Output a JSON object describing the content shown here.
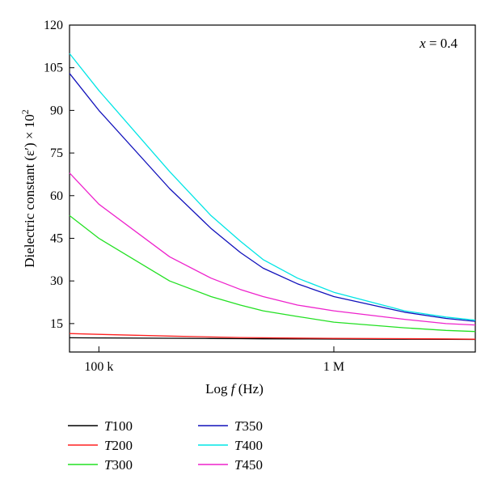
{
  "chart_data": {
    "type": "line",
    "annotation": {
      "prefix": "x",
      "suffix": " = 0.4"
    },
    "xlabel": {
      "pre": "Log ",
      "var": "f",
      "post": " (Hz)"
    },
    "ylabel": {
      "main": "Dielectric constant (ε′) × 10",
      "exp": "2"
    },
    "x_scale": "log",
    "xlim": [
      75000,
      4000000
    ],
    "ylim": [
      5,
      120
    ],
    "x_ticks": [
      {
        "value": 100000,
        "label": "100 k"
      },
      {
        "value": 1000000,
        "label": "1 M"
      }
    ],
    "y_ticks": [
      15,
      30,
      45,
      60,
      75,
      90,
      105,
      120
    ],
    "x": [
      75000,
      100000,
      200000,
      300000,
      400000,
      500000,
      700000,
      1000000,
      2000000,
      3000000,
      4000000
    ],
    "series": [
      {
        "name": "T100",
        "prefix": "T",
        "num": "100",
        "color": "#000000",
        "values": [
          10.0,
          9.95,
          9.85,
          9.75,
          9.7,
          9.65,
          9.6,
          9.55,
          9.5,
          9.45,
          9.4
        ]
      },
      {
        "name": "T200",
        "prefix": "T",
        "num": "200",
        "color": "#ff2020",
        "values": [
          11.5,
          11.2,
          10.6,
          10.3,
          10.1,
          10.0,
          9.9,
          9.8,
          9.7,
          9.6,
          9.5
        ]
      },
      {
        "name": "T300",
        "prefix": "T",
        "num": "300",
        "color": "#22e022",
        "values": [
          53.0,
          45.0,
          30.0,
          24.5,
          21.5,
          19.5,
          17.5,
          15.5,
          13.5,
          12.6,
          12.2
        ]
      },
      {
        "name": "T350",
        "prefix": "T",
        "num": "350",
        "color": "#1010bb",
        "values": [
          103.0,
          90.0,
          62.5,
          48.5,
          40.0,
          34.5,
          29.0,
          24.5,
          19.0,
          16.8,
          15.8
        ]
      },
      {
        "name": "T400",
        "prefix": "T",
        "num": "400",
        "color": "#00e5e5",
        "values": [
          110.0,
          97.0,
          68.5,
          53.0,
          44.0,
          37.5,
          31.0,
          26.0,
          19.5,
          17.3,
          16.2
        ]
      },
      {
        "name": "T450",
        "prefix": "T",
        "num": "450",
        "color": "#ee22cc",
        "values": [
          68.0,
          57.0,
          38.5,
          31.0,
          27.0,
          24.5,
          21.5,
          19.5,
          16.5,
          15.0,
          14.5
        ]
      }
    ]
  }
}
